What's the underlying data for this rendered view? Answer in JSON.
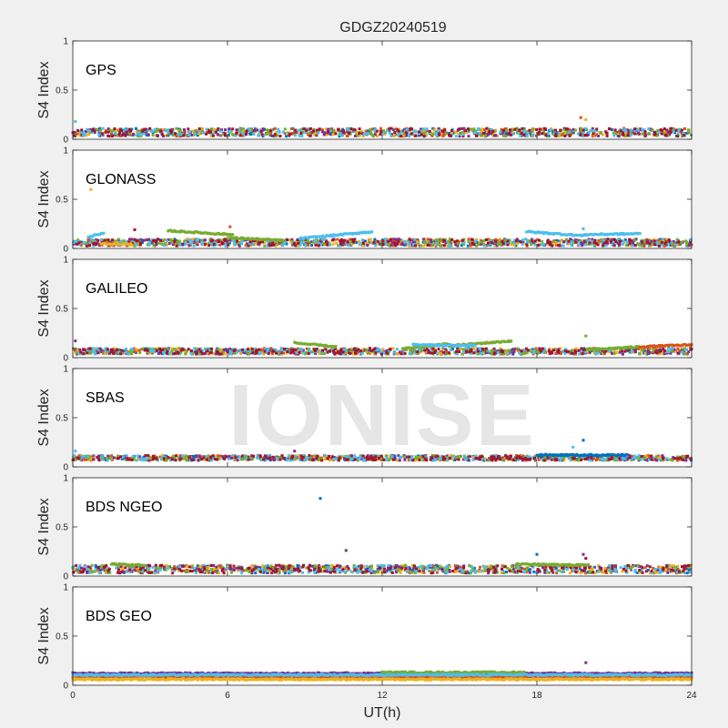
{
  "watermark": "IONISE",
  "chart_data": {
    "type": "scatter",
    "title": "GDGZ20240519",
    "xlabel": "UT(h)",
    "ylabel": "S4 Index",
    "xlim": [
      0,
      24
    ],
    "ylim": [
      0,
      1
    ],
    "xticks": [
      "0",
      "6",
      "12",
      "18",
      "24"
    ],
    "yticks": [
      "0",
      "0.5",
      "1"
    ],
    "grid": false,
    "series_colors": [
      "#0072BD",
      "#D95319",
      "#EDB120",
      "#7E2F8E",
      "#77AC30",
      "#4DBEEE",
      "#A2142F"
    ],
    "panels": [
      {
        "label": "GPS",
        "baseline": 0.07,
        "spread": 0.04,
        "bands": [],
        "points": [
          {
            "x": 0.1,
            "y": 0.18,
            "c": 5
          },
          {
            "x": 19.7,
            "y": 0.22,
            "c": 1
          },
          {
            "x": 19.9,
            "y": 0.2,
            "c": 2
          }
        ]
      },
      {
        "label": "GLONASS",
        "baseline": 0.06,
        "spread": 0.035,
        "bands": [
          {
            "x0": 0.6,
            "x1": 1.2,
            "y0": 0.12,
            "y1": 0.15,
            "c": 5
          },
          {
            "x0": 3.7,
            "x1": 6.2,
            "y0": 0.18,
            "y1": 0.14,
            "c": 4
          },
          {
            "x0": 6.0,
            "x1": 8.2,
            "y0": 0.11,
            "y1": 0.08,
            "c": 4
          },
          {
            "x0": 8.8,
            "x1": 11.6,
            "y0": 0.1,
            "y1": 0.17,
            "c": 5
          },
          {
            "x0": 17.6,
            "x1": 19.8,
            "y0": 0.17,
            "y1": 0.13,
            "c": 5
          },
          {
            "x0": 19.8,
            "x1": 22.0,
            "y0": 0.14,
            "y1": 0.15,
            "c": 5
          },
          {
            "x0": 1.1,
            "x1": 2.3,
            "y0": 0.05,
            "y1": 0.04,
            "c": 2
          }
        ],
        "points": [
          {
            "x": 0.7,
            "y": 0.6,
            "c": 2
          },
          {
            "x": 2.4,
            "y": 0.19,
            "c": 6
          },
          {
            "x": 6.1,
            "y": 0.22,
            "c": 1
          },
          {
            "x": 19.8,
            "y": 0.2,
            "c": 5
          }
        ]
      },
      {
        "label": "GALILEO",
        "baseline": 0.065,
        "spread": 0.03,
        "bands": [
          {
            "x0": 8.6,
            "x1": 10.2,
            "y0": 0.15,
            "y1": 0.11,
            "c": 4
          },
          {
            "x0": 12.8,
            "x1": 14.6,
            "y0": 0.09,
            "y1": 0.14,
            "c": 4
          },
          {
            "x0": 14.6,
            "x1": 17.0,
            "y0": 0.12,
            "y1": 0.17,
            "c": 4
          },
          {
            "x0": 13.2,
            "x1": 15.6,
            "y0": 0.13,
            "y1": 0.12,
            "c": 5
          },
          {
            "x0": 20.0,
            "x1": 22.0,
            "y0": 0.08,
            "y1": 0.11,
            "c": 4
          },
          {
            "x0": 22.0,
            "x1": 24.0,
            "y0": 0.11,
            "y1": 0.13,
            "c": 1
          }
        ],
        "points": [
          {
            "x": 0.1,
            "y": 0.17,
            "c": 3
          },
          {
            "x": 19.9,
            "y": 0.22,
            "c": 4
          }
        ]
      },
      {
        "label": "SBAS",
        "baseline": 0.09,
        "spread": 0.025,
        "bands": [
          {
            "x0": 18.0,
            "x1": 21.5,
            "y0": 0.12,
            "y1": 0.12,
            "c": 0
          }
        ],
        "points": [
          {
            "x": 0.1,
            "y": 0.16,
            "c": 5
          },
          {
            "x": 8.6,
            "y": 0.16,
            "c": 3
          },
          {
            "x": 19.8,
            "y": 0.27,
            "c": 0
          },
          {
            "x": 19.4,
            "y": 0.2,
            "c": 5
          }
        ]
      },
      {
        "label": "BDS NGEO",
        "baseline": 0.07,
        "spread": 0.04,
        "bands": [
          {
            "x0": 1.5,
            "x1": 2.8,
            "y0": 0.12,
            "y1": 0.11,
            "c": 4
          },
          {
            "x0": 17.2,
            "x1": 20.0,
            "y0": 0.12,
            "y1": 0.11,
            "c": 4
          }
        ],
        "points": [
          {
            "x": 9.6,
            "y": 0.79,
            "c": 0
          },
          {
            "x": 10.6,
            "y": 0.26,
            "c": 3
          },
          {
            "x": 18.0,
            "y": 0.22,
            "c": 0
          },
          {
            "x": 19.8,
            "y": 0.22,
            "c": 3
          },
          {
            "x": 19.9,
            "y": 0.18,
            "c": 6
          }
        ]
      },
      {
        "label": "BDS GEO",
        "baseline": 0.1,
        "spread": 0.02,
        "bands": [
          {
            "x0": 0.0,
            "x1": 24.0,
            "y0": 0.12,
            "y1": 0.12,
            "c": 3
          },
          {
            "x0": 0.0,
            "x1": 24.0,
            "y0": 0.09,
            "y1": 0.09,
            "c": 1
          },
          {
            "x0": 0.0,
            "x1": 24.0,
            "y0": 0.06,
            "y1": 0.06,
            "c": 2
          },
          {
            "x0": 12.0,
            "x1": 17.5,
            "y0": 0.13,
            "y1": 0.13,
            "c": 4
          },
          {
            "x0": 0.0,
            "x1": 24.0,
            "y0": 0.105,
            "y1": 0.105,
            "c": 5
          }
        ],
        "points": [
          {
            "x": 19.9,
            "y": 0.23,
            "c": 3
          }
        ]
      }
    ]
  }
}
